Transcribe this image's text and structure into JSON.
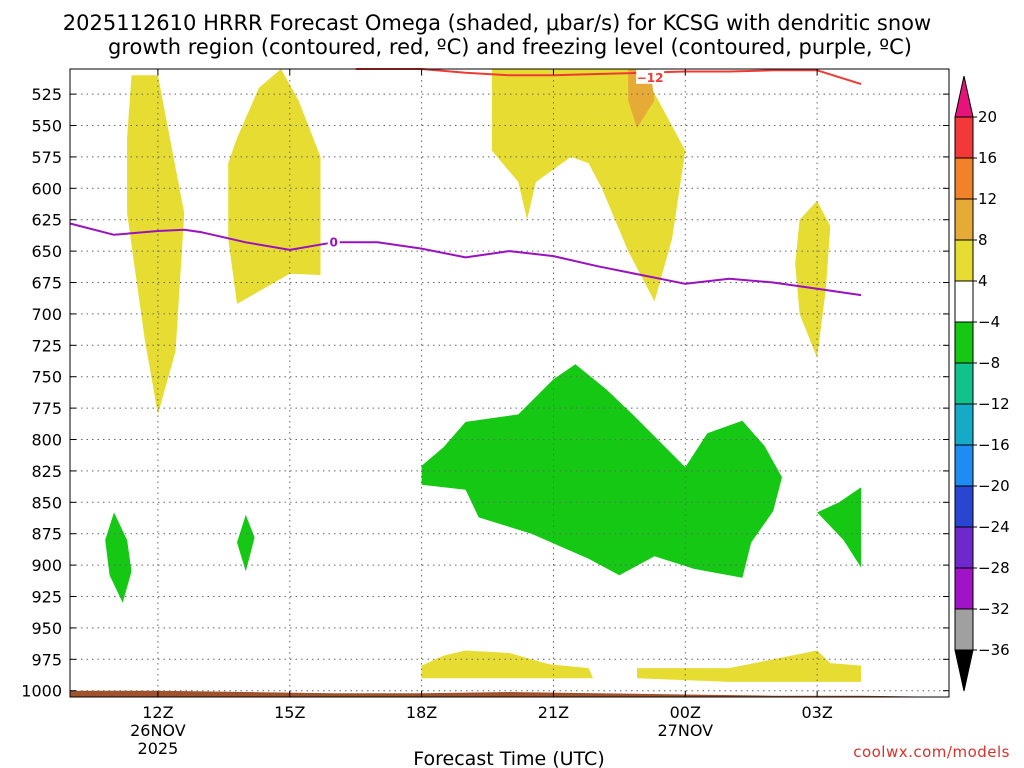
{
  "title": {
    "line1": "2025112610 HRRR Forecast Omega (shaded, μbar/s) for KCSG with dendritic snow",
    "line2": "growth region (contoured, red, ºC) and freezing level (contoured, purple, ºC)"
  },
  "credit": "coolwx.com/models",
  "colors": {
    "freezing_level": "#9a12c0",
    "dgz": "#ef3a34",
    "ground": "#a0522d",
    "grid": "#666666"
  },
  "chart_data": {
    "type": "heatmap",
    "xlabel": "Forecast Time (UTC)",
    "ylabel": "",
    "x_range": [
      10,
      30
    ],
    "y_range": [
      1005,
      505
    ],
    "y_scale": "linear",
    "grid": true,
    "x_ticks": [
      {
        "hour": 12,
        "label": "12Z",
        "sub1": "26NOV",
        "sub2": "2025"
      },
      {
        "hour": 15,
        "label": "15Z",
        "sub1": "",
        "sub2": ""
      },
      {
        "hour": 18,
        "label": "18Z",
        "sub1": "",
        "sub2": ""
      },
      {
        "hour": 21,
        "label": "21Z",
        "sub1": "",
        "sub2": ""
      },
      {
        "hour": 24,
        "label": "00Z",
        "sub1": "27NOV",
        "sub2": ""
      },
      {
        "hour": 27,
        "label": "03Z",
        "sub1": "",
        "sub2": ""
      }
    ],
    "y_ticks": [
      525,
      550,
      575,
      600,
      625,
      650,
      675,
      700,
      725,
      750,
      775,
      800,
      825,
      850,
      875,
      900,
      925,
      950,
      975,
      1000
    ],
    "colorbar": {
      "labels": [
        "20",
        "16",
        "12",
        "8",
        "4",
        "−4",
        "−8",
        "−12",
        "−16",
        "−20",
        "−24",
        "−28",
        "−32",
        "−36"
      ],
      "bins": [
        {
          "color": "#f23838"
        },
        {
          "color": "#f2822a"
        },
        {
          "color": "#e6aa36"
        },
        {
          "color": "#e6dc32"
        },
        {
          "color": "#ffffff"
        },
        {
          "color": "#14c814"
        },
        {
          "color": "#12c28c"
        },
        {
          "color": "#14aac8"
        },
        {
          "color": "#1e8cf0"
        },
        {
          "color": "#2846d2"
        },
        {
          "color": "#6e28cc"
        },
        {
          "color": "#a014c8"
        },
        {
          "color": "#a0a0a0"
        }
      ],
      "upper_arrow_color": "#e6147a",
      "lower_arrow_color": "#000000"
    },
    "omega_regions": [
      {
        "value_range": "4 to 8",
        "color": "#e6dc32",
        "points": [
          [
            11.4,
            510
          ],
          [
            12.0,
            510
          ],
          [
            12.6,
            620
          ],
          [
            12.4,
            730
          ],
          [
            12.0,
            780
          ],
          [
            11.7,
            720
          ],
          [
            11.3,
            620
          ],
          [
            11.3,
            560
          ]
        ]
      },
      {
        "value_range": "4 to 8",
        "color": "#e6dc32",
        "points": [
          [
            13.8,
            560
          ],
          [
            14.3,
            520
          ],
          [
            14.8,
            505
          ],
          [
            15.2,
            530
          ],
          [
            15.7,
            575
          ],
          [
            15.7,
            669
          ],
          [
            15.0,
            668
          ],
          [
            13.8,
            692
          ],
          [
            13.6,
            640
          ],
          [
            13.6,
            580
          ]
        ]
      },
      {
        "value_range": "4 to 8",
        "color": "#e6dc32",
        "points": [
          [
            19.6,
            505
          ],
          [
            23.0,
            505
          ],
          [
            24.0,
            570
          ],
          [
            23.7,
            640
          ],
          [
            23.3,
            690
          ],
          [
            22.7,
            650
          ],
          [
            22.1,
            600
          ],
          [
            21.8,
            580
          ],
          [
            21.4,
            575
          ],
          [
            20.6,
            595
          ],
          [
            20.4,
            625
          ],
          [
            20.2,
            595
          ],
          [
            19.6,
            570
          ]
        ]
      },
      {
        "value_range": "8 to 12",
        "color": "#e6aa36",
        "points": [
          [
            22.7,
            505
          ],
          [
            23.2,
            505
          ],
          [
            23.3,
            530
          ],
          [
            22.9,
            552
          ],
          [
            22.7,
            530
          ]
        ]
      },
      {
        "value_range": "4 to 8",
        "color": "#e6dc32",
        "points": [
          [
            27.0,
            610
          ],
          [
            27.3,
            630
          ],
          [
            27.2,
            680
          ],
          [
            27.0,
            735
          ],
          [
            26.6,
            700
          ],
          [
            26.5,
            660
          ],
          [
            26.6,
            625
          ]
        ]
      },
      {
        "value_range": "4 to 8",
        "color": "#e6dc32",
        "points": [
          [
            18.0,
            980
          ],
          [
            18.5,
            972
          ],
          [
            19.0,
            968
          ],
          [
            20.0,
            970
          ],
          [
            20.9,
            979
          ],
          [
            21.8,
            982
          ],
          [
            21.9,
            990
          ],
          [
            18.0,
            990
          ]
        ]
      },
      {
        "value_range": "4 to 8",
        "color": "#e6dc32",
        "points": [
          [
            22.9,
            982
          ],
          [
            25.0,
            982
          ],
          [
            26.0,
            975
          ],
          [
            27.0,
            968
          ],
          [
            27.3,
            978
          ],
          [
            28.0,
            980
          ],
          [
            28.0,
            993
          ],
          [
            25.0,
            993
          ],
          [
            22.9,
            990
          ]
        ]
      },
      {
        "value_range": "-8 to -4",
        "color": "#14c814",
        "points": [
          [
            18.0,
            821
          ],
          [
            18.5,
            806
          ],
          [
            19.0,
            786
          ],
          [
            20.2,
            780
          ],
          [
            21.0,
            752
          ],
          [
            21.5,
            740
          ],
          [
            22.2,
            760
          ],
          [
            22.8,
            780
          ],
          [
            24.0,
            822
          ],
          [
            24.5,
            795
          ],
          [
            25.3,
            785
          ],
          [
            25.8,
            805
          ],
          [
            26.2,
            830
          ],
          [
            26.0,
            857
          ],
          [
            25.5,
            882
          ],
          [
            25.3,
            910
          ],
          [
            24.2,
            903
          ],
          [
            23.3,
            893
          ],
          [
            22.5,
            908
          ],
          [
            21.8,
            895
          ],
          [
            20.5,
            875
          ],
          [
            19.3,
            862
          ],
          [
            19.0,
            840
          ],
          [
            18.0,
            836
          ]
        ]
      },
      {
        "value_range": "-8 to -4",
        "color": "#14c814",
        "points": [
          [
            27.0,
            858
          ],
          [
            27.5,
            850
          ],
          [
            28.0,
            838
          ],
          [
            28.0,
            902
          ],
          [
            27.6,
            880
          ]
        ]
      },
      {
        "value_range": "-8 to -4",
        "color": "#14c814",
        "points": [
          [
            11.0,
            858
          ],
          [
            11.3,
            880
          ],
          [
            11.4,
            905
          ],
          [
            11.2,
            930
          ],
          [
            10.9,
            908
          ],
          [
            10.8,
            880
          ]
        ]
      },
      {
        "value_range": "-8 to -4",
        "color": "#14c814",
        "points": [
          [
            14.0,
            860
          ],
          [
            14.2,
            878
          ],
          [
            14.0,
            905
          ],
          [
            13.8,
            882
          ]
        ]
      }
    ],
    "dgz_contour": {
      "label": "−12",
      "label_at": [
        23.2,
        512
      ],
      "points": [
        [
          16.5,
          501
        ],
        [
          18.0,
          505
        ],
        [
          19.0,
          508
        ],
        [
          20.0,
          510
        ],
        [
          21.0,
          510
        ],
        [
          22.0,
          509
        ],
        [
          23.0,
          508
        ],
        [
          24.0,
          507
        ],
        [
          25.0,
          507
        ],
        [
          26.0,
          506
        ],
        [
          27.0,
          506
        ],
        [
          28.0,
          517
        ]
      ]
    },
    "freezing_level_contour": {
      "label": "0",
      "label_at": [
        16.0,
        643
      ],
      "points": [
        [
          10.0,
          628
        ],
        [
          11.0,
          637
        ],
        [
          12.0,
          634
        ],
        [
          12.6,
          633
        ],
        [
          13.0,
          635
        ],
        [
          14.0,
          643
        ],
        [
          15.0,
          649
        ],
        [
          16.0,
          643
        ],
        [
          17.0,
          643
        ],
        [
          18.0,
          648
        ],
        [
          19.0,
          655
        ],
        [
          20.0,
          650
        ],
        [
          21.0,
          654
        ],
        [
          22.0,
          662
        ],
        [
          23.0,
          669
        ],
        [
          24.0,
          676
        ],
        [
          25.0,
          672
        ],
        [
          26.0,
          675
        ],
        [
          27.0,
          680
        ],
        [
          28.0,
          685
        ]
      ]
    },
    "ground_level": {
      "points": [
        [
          10.0,
          1000
        ],
        [
          12.0,
          1000
        ],
        [
          14.0,
          1001
        ],
        [
          16.0,
          1002
        ],
        [
          18.0,
          1002
        ],
        [
          20.0,
          1001
        ],
        [
          22.0,
          1002
        ],
        [
          24.0,
          1003
        ],
        [
          26.0,
          1004
        ],
        [
          28.0,
          1004
        ]
      ]
    }
  }
}
